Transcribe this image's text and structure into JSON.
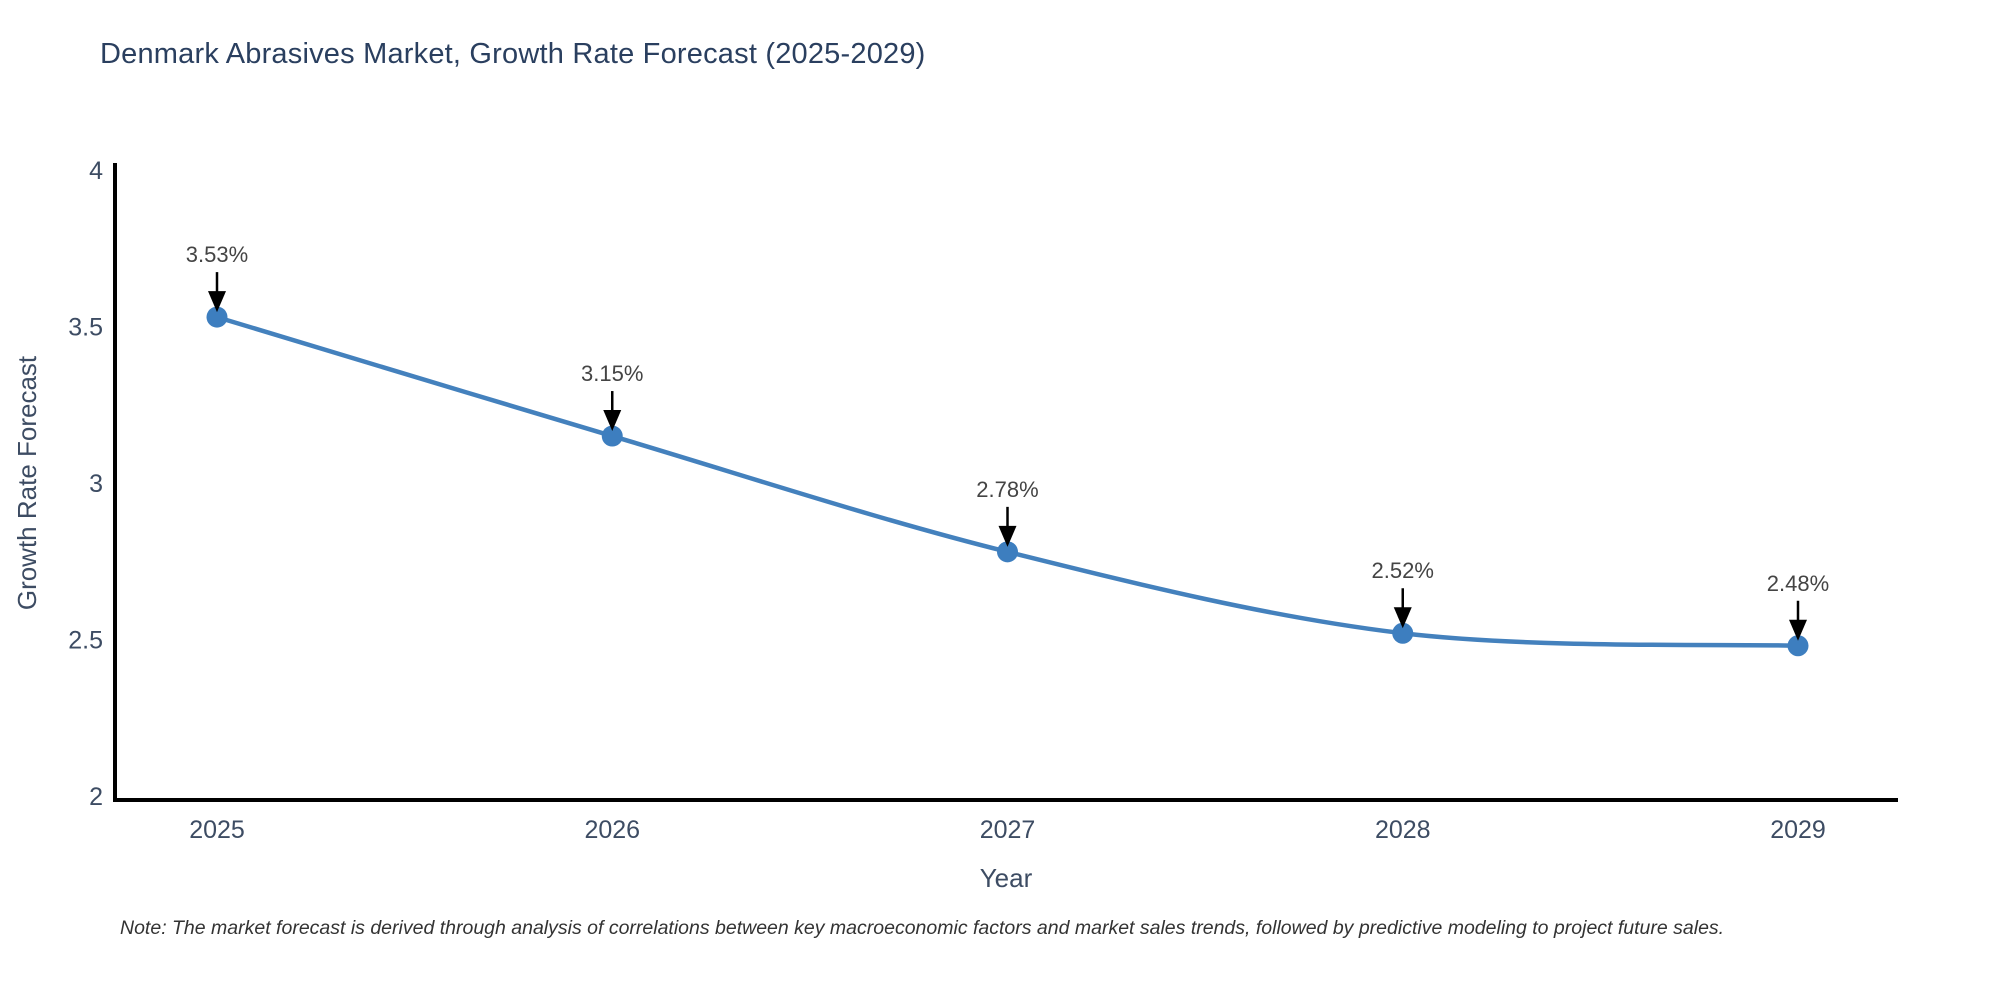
{
  "title": "Denmark Abrasives Market, Growth Rate Forecast (2025-2029)",
  "note": "Note: The market forecast is derived through analysis of correlations between key macroeconomic factors and market sales trends, followed by predictive modeling to project future sales.",
  "chart_data": {
    "type": "line",
    "title": "Denmark Abrasives Market, Growth Rate Forecast (2025-2029)",
    "xlabel": "Year",
    "ylabel": "Growth Rate Forecast",
    "x": [
      2025,
      2026,
      2027,
      2028,
      2029
    ],
    "xtick_labels": [
      "2025",
      "2026",
      "2027",
      "2028",
      "2029"
    ],
    "series": [
      {
        "name": "Growth Rate Forecast",
        "values": [
          3.53,
          3.15,
          2.78,
          2.52,
          2.48
        ]
      }
    ],
    "point_labels": [
      "3.53%",
      "3.15%",
      "2.78%",
      "2.52%",
      "2.48%"
    ],
    "ylim": [
      2,
      4
    ],
    "yticks": [
      4,
      3.5,
      3,
      2.5,
      2
    ],
    "ytick_labels": [
      "4",
      "3.5",
      "3",
      "2.5",
      "2"
    ],
    "grid": false,
    "legend": "none",
    "line_shape": "spline",
    "colors": {
      "line": "#4481bd",
      "marker": "#3d7ebf",
      "axis": "#000000",
      "title": "#2a3f5f",
      "tick": "#3d4c63",
      "point_label": "#444444",
      "arrow": "#000000",
      "note": "#333333",
      "background": "#ffffff"
    }
  }
}
